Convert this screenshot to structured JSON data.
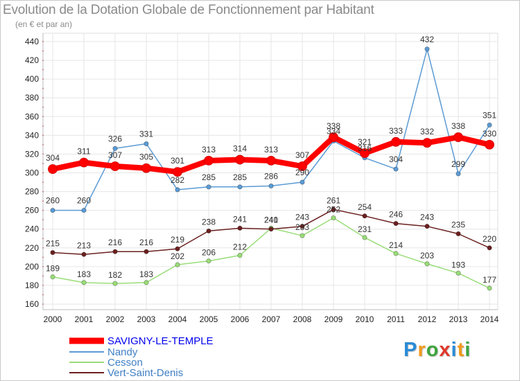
{
  "title": "Evolution de la Dotation Globale de Fonctionnement par Habitant",
  "subtitle": "(en € et par an)",
  "logo": {
    "text": "Proxiti",
    "letter_colors": [
      "#2a8bd6",
      "#f39a1c",
      "#3fa43f",
      "#e0382b",
      "#2a8bd6",
      "#f39a1c",
      "#3fa43f"
    ]
  },
  "chart_data": {
    "type": "line",
    "title": "Evolution de la Dotation Globale de Fonctionnement par Habitant",
    "subtitle": "(en € et par an)",
    "x": [
      "2000",
      "2001",
      "2002",
      "2003",
      "2004",
      "2005",
      "2006",
      "2007",
      "2008",
      "2009",
      "2010",
      "2011",
      "2012",
      "2013",
      "2014"
    ],
    "ylim": [
      160,
      440
    ],
    "yticks": [
      160,
      180,
      200,
      220,
      240,
      260,
      280,
      300,
      320,
      340,
      360,
      380,
      400,
      420,
      440
    ],
    "grid": true,
    "legend_position": "bottom-left",
    "series": [
      {
        "name": "SAVIGNY-LE-TEMPLE",
        "color": "#ff0000",
        "legend_color": "#0000ee",
        "values": [
          304,
          311,
          307,
          305,
          301,
          313,
          314,
          313,
          307,
          338,
          321,
          333,
          332,
          338,
          330
        ]
      },
      {
        "name": "Nandy",
        "color": "#5b9bd5",
        "legend_color": "#3f7fc4",
        "values": [
          260,
          260,
          326,
          331,
          282,
          285,
          285,
          286,
          290,
          334,
          316,
          304,
          432,
          299,
          351
        ]
      },
      {
        "name": "Cesson",
        "color": "#99dd77",
        "legend_color": "#3f7fc4",
        "values": [
          189,
          183,
          182,
          183,
          202,
          206,
          212,
          241,
          233,
          252,
          231,
          214,
          203,
          193,
          177
        ]
      },
      {
        "name": "Vert-Saint-Denis",
        "color": "#6b1f1f",
        "legend_color": "#3f7fc4",
        "values": [
          215,
          213,
          216,
          216,
          219,
          238,
          241,
          240,
          243,
          261,
          254,
          246,
          243,
          235,
          220
        ]
      }
    ]
  }
}
